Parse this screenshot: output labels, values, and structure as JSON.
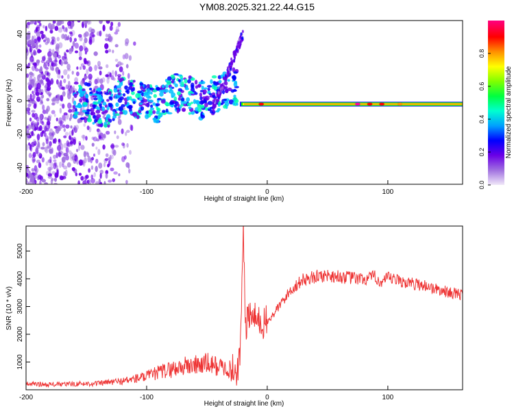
{
  "figure": {
    "title": "YM08.2025.321.22.44.G15"
  },
  "chart_data": [
    {
      "type": "heatmap",
      "title": "YM08.2025.321.22.44.G15",
      "xlabel": "Height of straight line (km)",
      "ylabel": "Frequency (Hz)",
      "xlim": [
        -200,
        162
      ],
      "ylim": [
        -50,
        48
      ],
      "x_ticks": [
        -200,
        -100,
        0,
        100
      ],
      "y_ticks": [
        -40,
        -20,
        0,
        20,
        40
      ],
      "colorbar": {
        "label": "Normalized spectral amplitude",
        "range": [
          0,
          1
        ],
        "ticks": [
          0.0,
          0.2,
          0.4,
          0.6,
          0.8
        ],
        "tick_labels": [
          "0.0",
          "0.2",
          "0.4",
          "0.6",
          "0.8"
        ],
        "colormap": [
          "#e8dcf5",
          "#a070e0",
          "#6a00e6",
          "#0000ff",
          "#00bfff",
          "#00ffb0",
          "#00ff00",
          "#9aff00",
          "#ffff00",
          "#ff9000",
          "#ff0000",
          "#ff00a0"
        ]
      },
      "features": [
        {
          "name": "scattered noise",
          "x_range": [
            -200,
            -110
          ],
          "freq_range": [
            -50,
            48
          ]
        },
        {
          "name": "echo band",
          "x_range": [
            -160,
            -25
          ],
          "freq_range": [
            -15,
            10
          ]
        },
        {
          "name": "rising streak",
          "x_range": [
            -45,
            -20
          ],
          "freq_range": [
            -5,
            40
          ]
        },
        {
          "name": "meteor trail band",
          "x_range": [
            -25,
            162
          ],
          "freq_center": -2,
          "peak_amplitude": 1.0
        }
      ]
    },
    {
      "type": "line",
      "xlabel": "Height of straight line (km)",
      "ylabel": "SNR (10 * v/v)",
      "xlim": [
        -200,
        162
      ],
      "ylim": [
        0,
        5900
      ],
      "x_ticks": [
        -200,
        -100,
        0,
        100
      ],
      "y_ticks": [
        1000,
        2000,
        3000,
        4000,
        5000
      ],
      "color": "#ee3333",
      "series": [
        {
          "name": "SNR",
          "x": [
            -200,
            -180,
            -160,
            -140,
            -120,
            -100,
            -90,
            -80,
            -70,
            -60,
            -50,
            -40,
            -30,
            -25,
            -22,
            -20,
            -18,
            -15,
            -10,
            -5,
            0,
            10,
            20,
            30,
            40,
            50,
            60,
            70,
            80,
            90,
            95,
            100,
            110,
            120,
            130,
            140,
            150,
            162
          ],
          "y": [
            200,
            180,
            200,
            220,
            300,
            450,
            600,
            700,
            800,
            850,
            900,
            800,
            700,
            600,
            1500,
            5900,
            2200,
            2600,
            2500,
            2300,
            2400,
            3000,
            3600,
            3950,
            4050,
            4100,
            4050,
            4000,
            3950,
            4050,
            3800,
            4000,
            3900,
            3800,
            3750,
            3600,
            3500,
            3400
          ]
        }
      ]
    }
  ]
}
